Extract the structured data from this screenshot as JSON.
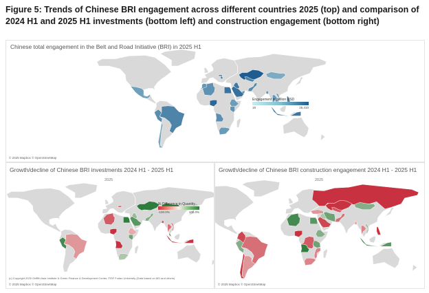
{
  "figure_title": "Figure 5: Trends of Chinese BRI engagement across different countries 2025 (top) and comparison of 2024 H1 and 2025 H1 investments (bottom left) and construction engagement (bottom right)",
  "top_map": {
    "title": "Chinese total engagement in the Belt and Road Initiative (BRI) in 2025 H1",
    "attribution": "© 2025 Mapbox © OpenStreetMap",
    "legend": {
      "title": "Engagement in million USD",
      "min": "18",
      "max": "25,410",
      "color_low": "#c9ecee",
      "color_high": "#1f5c8f"
    },
    "countries": [
      {
        "name": "Kazakhstan",
        "value": 25410
      },
      {
        "name": "Nigeria",
        "value": 12000
      },
      {
        "name": "Saudi Arabia",
        "value": 6000
      },
      {
        "name": "Egypt",
        "value": 5000
      },
      {
        "name": "Indonesia",
        "value": 4000
      },
      {
        "name": "Brazil",
        "value": 1500
      },
      {
        "name": "Peru",
        "value": 800
      },
      {
        "name": "Pakistan",
        "value": 900
      },
      {
        "name": "Iraq",
        "value": 3500
      },
      {
        "name": "Angola",
        "value": 700
      },
      {
        "name": "Kenya",
        "value": 500
      },
      {
        "name": "Philippines",
        "value": 1500
      },
      {
        "name": "Serbia",
        "value": 1200
      },
      {
        "name": "Uzbekistan",
        "value": 1800
      },
      {
        "name": "Algeria",
        "value": 600
      },
      {
        "name": "Thailand",
        "value": 400
      },
      {
        "name": "Vietnam",
        "value": 300
      },
      {
        "name": "Mexico",
        "value": 200
      },
      {
        "name": "South Africa",
        "value": 300
      },
      {
        "name": "Hungary",
        "value": 2500
      },
      {
        "name": "Ethiopia",
        "value": 250
      },
      {
        "name": "Bangladesh",
        "value": 400
      },
      {
        "name": "Chile",
        "value": 150
      },
      {
        "name": "Mongolia",
        "value": 100
      },
      {
        "name": "Cambodia",
        "value": 200
      },
      {
        "name": "Morocco",
        "value": 400
      },
      {
        "name": "UAE",
        "value": 900
      }
    ]
  },
  "bottom_left_map": {
    "title": "Growth/decline of Chinese BRI investments 2024 H1 - 2025 H1",
    "year_label": "2025",
    "legend": {
      "title": "% Difference in Quantity...",
      "min": "-100.0%",
      "max": "100.0%",
      "color_neg": "#c8313f",
      "color_mid": "#f5f0ea",
      "color_pos": "#2e7d3c"
    },
    "source_note": "(c) Copyright 2025 Griffith Asia Institute & Green Finance & Development Center, FISF Fudan University (Data based on AEI and others)",
    "attribution": "© 2025 Mapbox © OpenStreetMap",
    "countries": [
      {
        "name": "Kazakhstan",
        "value": 100
      },
      {
        "name": "Mongolia",
        "value": 90
      },
      {
        "name": "Nigeria",
        "value": -100
      },
      {
        "name": "Egypt",
        "value": 80
      },
      {
        "name": "Saudi Arabia",
        "value": 60
      },
      {
        "name": "Indonesia",
        "value": -80
      },
      {
        "name": "Peru",
        "value": 70
      },
      {
        "name": "Brazil",
        "value": -30
      },
      {
        "name": "Angola",
        "value": -90
      },
      {
        "name": "Algeria",
        "value": -60
      },
      {
        "name": "Pakistan",
        "value": 40
      },
      {
        "name": "Thailand",
        "value": -50
      },
      {
        "name": "Vietnam",
        "value": -40
      },
      {
        "name": "Kenya",
        "value": 50
      },
      {
        "name": "Ethiopia",
        "value": -20
      },
      {
        "name": "Hungary",
        "value": -70
      },
      {
        "name": "Iraq",
        "value": 30
      },
      {
        "name": "South Africa",
        "value": 20
      },
      {
        "name": "Bangladesh",
        "value": -60
      },
      {
        "name": "Malaysia",
        "value": 60
      }
    ]
  },
  "bottom_right_map": {
    "title": "Growth/decline of Chinese BRI construction engagement 2024 H1 - 2025 H1",
    "year_label": "2025",
    "attribution": "© 2025 Mapbox © OpenStreetMap",
    "countries": [
      {
        "name": "Russia",
        "value": -100
      },
      {
        "name": "Mongolia",
        "value": 40
      },
      {
        "name": "Kazakhstan",
        "value": -80
      },
      {
        "name": "Saudi Arabia",
        "value": -70
      },
      {
        "name": "Iran",
        "value": 50
      },
      {
        "name": "Egypt",
        "value": 60
      },
      {
        "name": "Algeria",
        "value": 70
      },
      {
        "name": "Nigeria",
        "value": -90
      },
      {
        "name": "Angola",
        "value": 80
      },
      {
        "name": "DR Congo",
        "value": -60
      },
      {
        "name": "Tanzania",
        "value": 50
      },
      {
        "name": "South Africa",
        "value": -40
      },
      {
        "name": "Brazil",
        "value": -50
      },
      {
        "name": "Peru",
        "value": 40
      },
      {
        "name": "Chile",
        "value": -80
      },
      {
        "name": "Argentina",
        "value": -30
      },
      {
        "name": "Colombia",
        "value": -70
      },
      {
        "name": "Pakistan",
        "value": -50
      },
      {
        "name": "Indonesia",
        "value": 60
      },
      {
        "name": "Philippines",
        "value": -90
      },
      {
        "name": "Vietnam",
        "value": 30
      },
      {
        "name": "Thailand",
        "value": -40
      },
      {
        "name": "Iraq",
        "value": 20
      },
      {
        "name": "Uzbekistan",
        "value": -60
      },
      {
        "name": "Turkey",
        "value": -30
      },
      {
        "name": "Ethiopia",
        "value": 40
      },
      {
        "name": "Mozambique",
        "value": -40
      },
      {
        "name": "Bangladesh",
        "value": -20
      }
    ]
  }
}
